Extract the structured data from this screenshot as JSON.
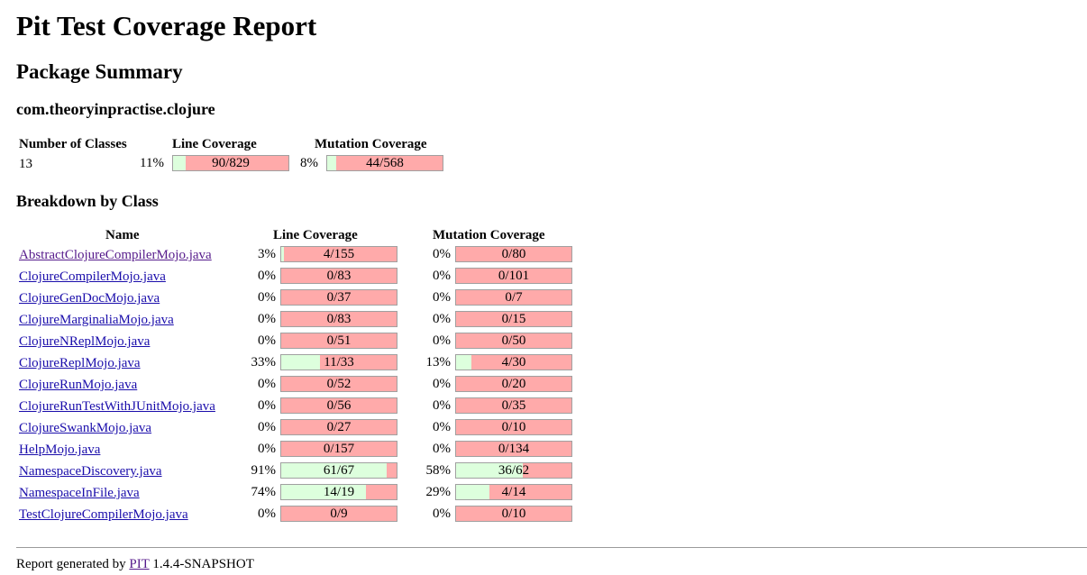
{
  "title": "Pit Test Coverage Report",
  "package_summary": {
    "heading": "Package Summary",
    "package_name": "com.theoryinpractise.clojure",
    "headers": {
      "classes": "Number of Classes",
      "line": "Line Coverage",
      "mutation": "Mutation Coverage"
    },
    "classes": "13",
    "line": {
      "pct": "11%",
      "text": "90/829",
      "covered": 90,
      "total": 829
    },
    "mutation": {
      "pct": "8%",
      "text": "44/568",
      "covered": 44,
      "total": 568
    }
  },
  "breakdown": {
    "heading": "Breakdown by Class",
    "headers": {
      "name": "Name",
      "line": "Line Coverage",
      "mutation": "Mutation Coverage"
    },
    "rows": [
      {
        "name": "AbstractClojureCompilerMojo.java",
        "visited": true,
        "line": {
          "pct": "3%",
          "text": "4/155",
          "covered": 4,
          "total": 155
        },
        "mutation": {
          "pct": "0%",
          "text": "0/80",
          "covered": 0,
          "total": 80
        }
      },
      {
        "name": "ClojureCompilerMojo.java",
        "line": {
          "pct": "0%",
          "text": "0/83",
          "covered": 0,
          "total": 83
        },
        "mutation": {
          "pct": "0%",
          "text": "0/101",
          "covered": 0,
          "total": 101
        }
      },
      {
        "name": "ClojureGenDocMojo.java",
        "line": {
          "pct": "0%",
          "text": "0/37",
          "covered": 0,
          "total": 37
        },
        "mutation": {
          "pct": "0%",
          "text": "0/7",
          "covered": 0,
          "total": 7
        }
      },
      {
        "name": "ClojureMarginaliaMojo.java",
        "line": {
          "pct": "0%",
          "text": "0/83",
          "covered": 0,
          "total": 83
        },
        "mutation": {
          "pct": "0%",
          "text": "0/15",
          "covered": 0,
          "total": 15
        }
      },
      {
        "name": "ClojureNReplMojo.java",
        "line": {
          "pct": "0%",
          "text": "0/51",
          "covered": 0,
          "total": 51
        },
        "mutation": {
          "pct": "0%",
          "text": "0/50",
          "covered": 0,
          "total": 50
        }
      },
      {
        "name": "ClojureReplMojo.java",
        "line": {
          "pct": "33%",
          "text": "11/33",
          "covered": 11,
          "total": 33
        },
        "mutation": {
          "pct": "13%",
          "text": "4/30",
          "covered": 4,
          "total": 30
        }
      },
      {
        "name": "ClojureRunMojo.java",
        "line": {
          "pct": "0%",
          "text": "0/52",
          "covered": 0,
          "total": 52
        },
        "mutation": {
          "pct": "0%",
          "text": "0/20",
          "covered": 0,
          "total": 20
        }
      },
      {
        "name": "ClojureRunTestWithJUnitMojo.java",
        "line": {
          "pct": "0%",
          "text": "0/56",
          "covered": 0,
          "total": 56
        },
        "mutation": {
          "pct": "0%",
          "text": "0/35",
          "covered": 0,
          "total": 35
        }
      },
      {
        "name": "ClojureSwankMojo.java",
        "line": {
          "pct": "0%",
          "text": "0/27",
          "covered": 0,
          "total": 27
        },
        "mutation": {
          "pct": "0%",
          "text": "0/10",
          "covered": 0,
          "total": 10
        }
      },
      {
        "name": "HelpMojo.java",
        "line": {
          "pct": "0%",
          "text": "0/157",
          "covered": 0,
          "total": 157
        },
        "mutation": {
          "pct": "0%",
          "text": "0/134",
          "covered": 0,
          "total": 134
        }
      },
      {
        "name": "NamespaceDiscovery.java",
        "line": {
          "pct": "91%",
          "text": "61/67",
          "covered": 61,
          "total": 67
        },
        "mutation": {
          "pct": "58%",
          "text": "36/62",
          "covered": 36,
          "total": 62
        }
      },
      {
        "name": "NamespaceInFile.java",
        "line": {
          "pct": "74%",
          "text": "14/19",
          "covered": 14,
          "total": 19
        },
        "mutation": {
          "pct": "29%",
          "text": "4/14",
          "covered": 4,
          "total": 14
        }
      },
      {
        "name": "TestClojureCompilerMojo.java",
        "line": {
          "pct": "0%",
          "text": "0/9",
          "covered": 0,
          "total": 9
        },
        "mutation": {
          "pct": "0%",
          "text": "0/10",
          "covered": 0,
          "total": 10
        }
      }
    ]
  },
  "footer": {
    "prefix": "Report generated by",
    "link": "PIT",
    "suffix": "1.4.4-SNAPSHOT"
  },
  "colors": {
    "covered": "#ddffdd",
    "uncovered": "#ffaaaa",
    "link": "#1a0dab",
    "visited_link": "#551a8b"
  }
}
